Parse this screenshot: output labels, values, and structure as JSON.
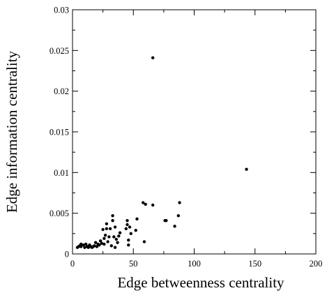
{
  "chart_data": {
    "type": "scatter",
    "title": "",
    "xlabel": "Edge betweenness centrality",
    "ylabel": "Edge information centrality",
    "xlim": [
      0,
      200
    ],
    "ylim": [
      0,
      0.03
    ],
    "x_ticks": [
      0,
      50,
      100,
      150,
      200
    ],
    "y_ticks": [
      0,
      0.005,
      0.01,
      0.015,
      0.02,
      0.025,
      0.03
    ],
    "x_tick_labels": [
      "0",
      "50",
      "100",
      "150",
      "200"
    ],
    "y_tick_labels": [
      "0",
      "0.005",
      "0.01",
      "0.015",
      "0.02",
      "0.025",
      "0.03"
    ],
    "grid": false,
    "legend": "none",
    "marker_color": "#000000",
    "points": [
      {
        "x": 4,
        "y": 0.0008
      },
      {
        "x": 5,
        "y": 0.0009
      },
      {
        "x": 6,
        "y": 0.001
      },
      {
        "x": 7,
        "y": 0.0009
      },
      {
        "x": 7,
        "y": 0.0012
      },
      {
        "x": 9,
        "y": 0.0011
      },
      {
        "x": 10,
        "y": 0.0008
      },
      {
        "x": 11,
        "y": 0.0012
      },
      {
        "x": 12,
        "y": 0.0009
      },
      {
        "x": 13,
        "y": 0.0008
      },
      {
        "x": 14,
        "y": 0.0011
      },
      {
        "x": 15,
        "y": 0.0009
      },
      {
        "x": 16,
        "y": 0.0008
      },
      {
        "x": 17,
        "y": 0.0009
      },
      {
        "x": 18,
        "y": 0.001
      },
      {
        "x": 19,
        "y": 0.0014
      },
      {
        "x": 20,
        "y": 0.0009
      },
      {
        "x": 21,
        "y": 0.0012
      },
      {
        "x": 22,
        "y": 0.0011
      },
      {
        "x": 23,
        "y": 0.0016
      },
      {
        "x": 24,
        "y": 0.0013
      },
      {
        "x": 25,
        "y": 0.003
      },
      {
        "x": 26,
        "y": 0.0019
      },
      {
        "x": 26,
        "y": 0.0012
      },
      {
        "x": 27,
        "y": 0.0023
      },
      {
        "x": 28,
        "y": 0.0031
      },
      {
        "x": 28,
        "y": 0.0037
      },
      {
        "x": 29,
        "y": 0.0015
      },
      {
        "x": 30,
        "y": 0.0021
      },
      {
        "x": 31,
        "y": 0.0031
      },
      {
        "x": 32,
        "y": 0.001
      },
      {
        "x": 33,
        "y": 0.0041
      },
      {
        "x": 33,
        "y": 0.0047
      },
      {
        "x": 34,
        "y": 0.0021
      },
      {
        "x": 35,
        "y": 0.0008
      },
      {
        "x": 35,
        "y": 0.0033
      },
      {
        "x": 36,
        "y": 0.0018
      },
      {
        "x": 37,
        "y": 0.0014
      },
      {
        "x": 38,
        "y": 0.0022
      },
      {
        "x": 39,
        "y": 0.0026
      },
      {
        "x": 44,
        "y": 0.0031
      },
      {
        "x": 45,
        "y": 0.0036
      },
      {
        "x": 45,
        "y": 0.0041
      },
      {
        "x": 46,
        "y": 0.0011
      },
      {
        "x": 46,
        "y": 0.0017
      },
      {
        "x": 47,
        "y": 0.0033
      },
      {
        "x": 48,
        "y": 0.0025
      },
      {
        "x": 52,
        "y": 0.0029
      },
      {
        "x": 53,
        "y": 0.0043
      },
      {
        "x": 58,
        "y": 0.0063
      },
      {
        "x": 60,
        "y": 0.0061
      },
      {
        "x": 59,
        "y": 0.0015
      },
      {
        "x": 66,
        "y": 0.006
      },
      {
        "x": 66,
        "y": 0.0241
      },
      {
        "x": 76,
        "y": 0.0041
      },
      {
        "x": 77,
        "y": 0.0041
      },
      {
        "x": 84,
        "y": 0.0034
      },
      {
        "x": 87,
        "y": 0.0047
      },
      {
        "x": 88,
        "y": 0.0063
      },
      {
        "x": 143,
        "y": 0.0104
      }
    ]
  }
}
